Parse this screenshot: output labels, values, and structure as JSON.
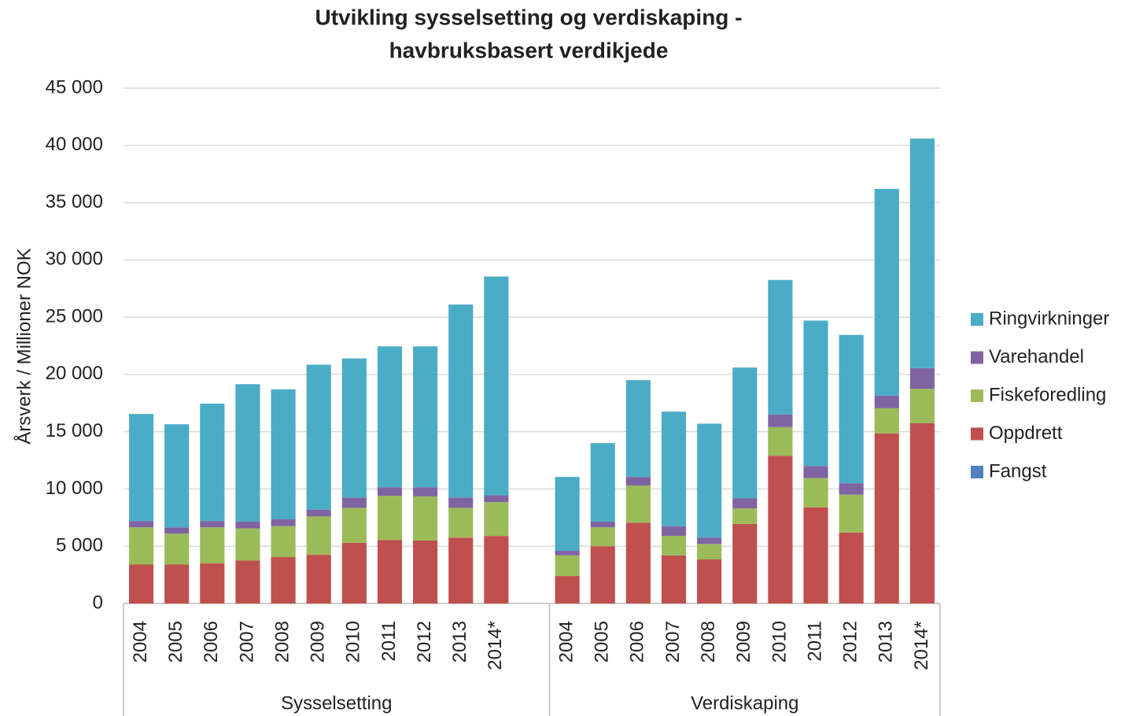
{
  "chart_data": {
    "type": "stacked_bar",
    "title": [
      "Utvikling sysselsetting og verdiskaping -",
      "havbruksbasert verdikjede"
    ],
    "y_label": "Årsverk / Millioner NOK",
    "groups": [
      {
        "name": "Sysselsetting",
        "categories": [
          "2004",
          "2005",
          "2006",
          "2007",
          "2008",
          "2009",
          "2010",
          "2011",
          "2012",
          "2013",
          "2014*"
        ]
      },
      {
        "name": "Verdiskaping",
        "categories": [
          "2004",
          "2005",
          "2006",
          "2007",
          "2008",
          "2009",
          "2010",
          "2011",
          "2012",
          "2013",
          "2014*"
        ]
      }
    ],
    "series": [
      {
        "name": "Fangst",
        "color": "#4f81bd",
        "values": [
          0,
          0,
          0,
          0,
          0,
          0,
          0,
          0,
          0,
          0,
          0,
          0,
          0,
          0,
          0,
          0,
          0,
          0,
          0,
          0,
          0,
          0
        ]
      },
      {
        "name": "Oppdrett",
        "color": "#c0504d",
        "values": [
          3400,
          3400,
          3500,
          3750,
          4050,
          4250,
          5300,
          5550,
          5500,
          5750,
          5900,
          2400,
          5000,
          7050,
          4200,
          3850,
          6950,
          12900,
          8400,
          6200,
          14850,
          15750
        ]
      },
      {
        "name": "Fiskeforedling",
        "color": "#9bbb59",
        "values": [
          3250,
          2700,
          3150,
          2800,
          2700,
          3350,
          3050,
          3850,
          3850,
          2600,
          2950,
          1800,
          1650,
          3250,
          1700,
          1350,
          1350,
          2500,
          2550,
          3300,
          2200,
          3000
        ]
      },
      {
        "name": "Varehandel",
        "color": "#8064a2",
        "values": [
          550,
          550,
          550,
          600,
          600,
          600,
          900,
          750,
          800,
          900,
          600,
          400,
          500,
          750,
          850,
          550,
          900,
          1100,
          1050,
          1000,
          1100,
          1800
        ]
      },
      {
        "name": "Ringvirkninger",
        "color": "#4bacc6",
        "values": [
          9350,
          9000,
          10250,
          12000,
          11350,
          12650,
          12150,
          12300,
          12300,
          16850,
          19100,
          6450,
          6850,
          8450,
          10000,
          9950,
          11400,
          11750,
          12700,
          12950,
          18050,
          20050
        ]
      }
    ],
    "ylim": [
      0,
      45000
    ],
    "yticks": [
      0,
      {
        "value": 5000,
        "label": "5 000"
      },
      {
        "value": 10000,
        "label": "10 000"
      },
      {
        "value": 15000,
        "label": "15 000"
      },
      {
        "value": 20000,
        "label": "20 000"
      },
      {
        "value": 25000,
        "label": "25 000"
      },
      {
        "value": 30000,
        "label": "30 000"
      },
      {
        "value": 35000,
        "label": "35 000"
      },
      {
        "value": 40000,
        "label": "40 000"
      },
      {
        "value": 45000,
        "label": "45 000"
      }
    ],
    "grid": true,
    "legend": "right"
  }
}
